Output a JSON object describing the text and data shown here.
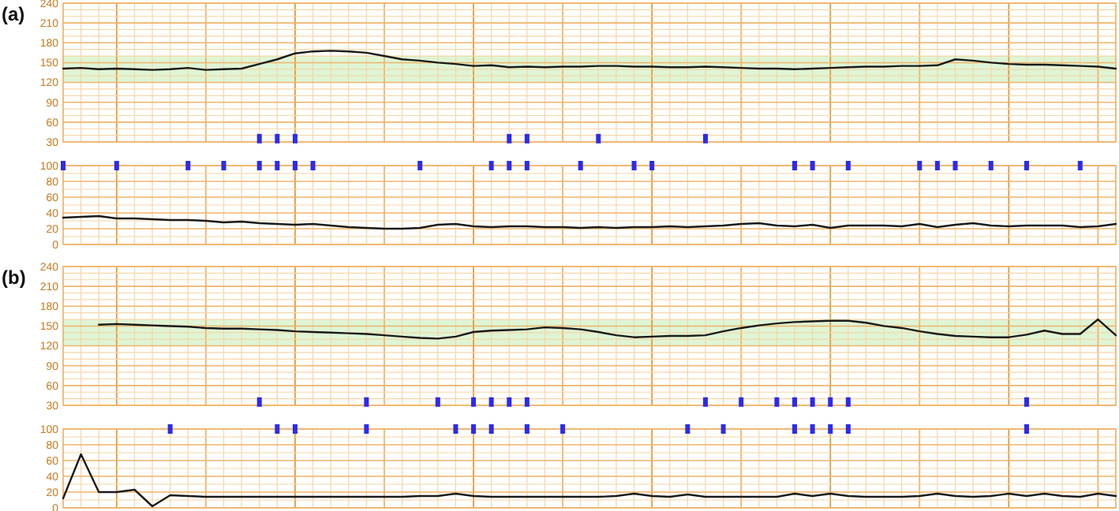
{
  "chart_data": [
    {
      "type": "line",
      "title": "(a)",
      "categories": [
        null,
        null,
        null,
        null,
        null,
        null,
        null,
        null,
        null,
        null,
        null,
        null,
        null,
        null,
        null,
        null,
        null,
        null,
        null,
        null,
        null,
        null,
        null,
        null,
        null,
        null,
        null,
        null,
        null,
        null,
        null,
        null,
        null,
        null,
        null,
        null,
        null,
        null,
        null,
        null,
        null,
        null,
        null,
        null,
        null,
        null,
        null,
        null,
        null,
        null,
        null,
        null,
        null,
        null,
        null,
        null,
        null,
        null,
        null,
        null
      ],
      "ylim": [
        30,
        240
      ],
      "yticks": [
        30,
        60,
        90,
        120,
        150,
        180,
        210,
        240
      ],
      "grid": true,
      "tick_labels": "y",
      "bands": [
        {
          "axis": "y",
          "from": 120,
          "to": 160,
          "color": "#def5d6"
        }
      ],
      "series": [
        {
          "color": "#1a1a1a",
          "values": [
            141,
            142,
            140,
            141,
            140,
            139,
            140,
            142,
            139,
            140,
            141,
            148,
            155,
            164,
            167,
            168,
            167,
            165,
            160,
            155,
            153,
            150,
            148,
            145,
            146,
            143,
            144,
            143,
            144,
            144,
            145,
            145,
            144,
            144,
            143,
            143,
            144,
            143,
            142,
            141,
            141,
            140,
            141,
            142,
            143,
            144,
            144,
            145,
            145,
            146,
            155,
            153,
            150,
            148,
            147,
            147,
            146,
            145,
            144,
            141
          ]
        },
        {
          "type": "scatter",
          "marker": "square",
          "color": "#2b2bf0",
          "values": [
            null,
            null,
            null,
            null,
            null,
            null,
            null,
            null,
            null,
            null,
            null,
            35,
            35,
            35,
            null,
            null,
            null,
            null,
            null,
            null,
            null,
            null,
            null,
            null,
            null,
            35,
            35,
            null,
            null,
            null,
            35,
            null,
            null,
            null,
            null,
            null,
            35,
            null,
            null,
            null,
            null,
            null,
            null,
            null,
            null,
            null,
            null,
            null,
            null,
            null,
            null,
            null,
            null,
            null,
            null,
            null,
            null,
            null,
            null,
            null
          ]
        }
      ]
    },
    {
      "type": "line",
      "categories": [
        null,
        null,
        null,
        null,
        null,
        null,
        null,
        null,
        null,
        null,
        null,
        null,
        null,
        null,
        null,
        null,
        null,
        null,
        null,
        null,
        null,
        null,
        null,
        null,
        null,
        null,
        null,
        null,
        null,
        null,
        null,
        null,
        null,
        null,
        null,
        null,
        null,
        null,
        null,
        null,
        null,
        null,
        null,
        null,
        null,
        null,
        null,
        null,
        null,
        null,
        null,
        null,
        null,
        null,
        null,
        null,
        null,
        null,
        null,
        null
      ],
      "ylim": [
        0,
        100
      ],
      "yticks": [
        0,
        20,
        40,
        60,
        80,
        100
      ],
      "grid": true,
      "tick_labels": "y",
      "series": [
        {
          "color": "#1a1a1a",
          "values": [
            34,
            35,
            36,
            33,
            33,
            32,
            31,
            31,
            30,
            28,
            29,
            27,
            26,
            25,
            26,
            24,
            22,
            21,
            20,
            20,
            21,
            25,
            26,
            23,
            22,
            23,
            23,
            22,
            22,
            21,
            22,
            21,
            22,
            22,
            23,
            22,
            23,
            24,
            26,
            27,
            24,
            23,
            25,
            21,
            24,
            24,
            24,
            23,
            26,
            22,
            25,
            27,
            24,
            23,
            24,
            24,
            24,
            22,
            23,
            26
          ]
        },
        {
          "type": "scatter",
          "marker": "square",
          "color": "#2b2bf0",
          "values": [
            100,
            null,
            null,
            100,
            null,
            null,
            null,
            100,
            null,
            100,
            null,
            100,
            100,
            100,
            100,
            null,
            null,
            null,
            null,
            null,
            100,
            null,
            null,
            null,
            100,
            100,
            100,
            null,
            null,
            100,
            null,
            null,
            100,
            100,
            null,
            null,
            null,
            null,
            null,
            null,
            null,
            100,
            100,
            null,
            100,
            null,
            null,
            null,
            100,
            100,
            100,
            null,
            100,
            null,
            100,
            null,
            null,
            100,
            null,
            null
          ]
        }
      ]
    },
    {
      "type": "line",
      "title": "(b)",
      "categories": [
        null,
        null,
        null,
        null,
        null,
        null,
        null,
        null,
        null,
        null,
        null,
        null,
        null,
        null,
        null,
        null,
        null,
        null,
        null,
        null,
        null,
        null,
        null,
        null,
        null,
        null,
        null,
        null,
        null,
        null,
        null,
        null,
        null,
        null,
        null,
        null,
        null,
        null,
        null,
        null,
        null,
        null,
        null,
        null,
        null,
        null,
        null,
        null,
        null,
        null,
        null,
        null,
        null,
        null,
        null,
        null,
        null,
        null,
        null,
        null
      ],
      "ylim": [
        30,
        240
      ],
      "yticks": [
        30,
        60,
        90,
        120,
        150,
        180,
        210,
        240
      ],
      "grid": true,
      "tick_labels": "y",
      "bands": [
        {
          "axis": "y",
          "from": 120,
          "to": 160,
          "color": "#def5d6"
        }
      ],
      "series": [
        {
          "color": "#1a1a1a",
          "values": [
            null,
            null,
            152,
            153,
            152,
            151,
            150,
            149,
            147,
            146,
            146,
            145,
            144,
            142,
            141,
            140,
            139,
            138,
            136,
            134,
            132,
            131,
            134,
            141,
            143,
            144,
            145,
            148,
            147,
            145,
            141,
            136,
            133,
            134,
            135,
            135,
            136,
            142,
            147,
            151,
            154,
            156,
            157,
            158,
            158,
            155,
            150,
            147,
            142,
            138,
            135,
            134,
            133,
            133,
            137,
            143,
            138,
            138,
            160,
            136
          ]
        },
        {
          "type": "scatter",
          "marker": "square",
          "color": "#2b2bf0",
          "values": [
            null,
            null,
            null,
            null,
            null,
            null,
            null,
            null,
            null,
            null,
            null,
            35,
            null,
            null,
            null,
            null,
            null,
            35,
            null,
            null,
            null,
            35,
            null,
            35,
            35,
            35,
            35,
            null,
            null,
            null,
            null,
            null,
            null,
            null,
            null,
            null,
            35,
            null,
            35,
            null,
            35,
            35,
            35,
            35,
            35,
            null,
            null,
            null,
            null,
            null,
            null,
            null,
            null,
            null,
            35,
            null,
            null,
            null,
            null,
            null
          ]
        }
      ]
    },
    {
      "type": "line",
      "categories": [
        null,
        null,
        null,
        null,
        null,
        null,
        null,
        null,
        null,
        null,
        null,
        null,
        null,
        null,
        null,
        null,
        null,
        null,
        null,
        null,
        null,
        null,
        null,
        null,
        null,
        null,
        null,
        null,
        null,
        null,
        null,
        null,
        null,
        null,
        null,
        null,
        null,
        null,
        null,
        null,
        null,
        null,
        null,
        null,
        null,
        null,
        null,
        null,
        null,
        null,
        null,
        null,
        null,
        null,
        null,
        null,
        null,
        null,
        null,
        null
      ],
      "ylim": [
        0,
        100
      ],
      "yticks": [
        0,
        20,
        40,
        60,
        80,
        100
      ],
      "grid": true,
      "tick_labels": "y",
      "series": [
        {
          "color": "#1a1a1a",
          "values": [
            12,
            68,
            20,
            20,
            23,
            2,
            16,
            15,
            14,
            14,
            14,
            14,
            14,
            14,
            14,
            14,
            14,
            14,
            14,
            14,
            15,
            15,
            18,
            15,
            14,
            14,
            14,
            14,
            14,
            14,
            14,
            15,
            18,
            15,
            14,
            17,
            14,
            14,
            14,
            14,
            14,
            18,
            15,
            18,
            15,
            14,
            14,
            14,
            15,
            18,
            15,
            14,
            15,
            18,
            15,
            18,
            15,
            14,
            18,
            15
          ]
        },
        {
          "type": "scatter",
          "marker": "square",
          "color": "#2b2bf0",
          "values": [
            null,
            null,
            null,
            null,
            null,
            null,
            100,
            null,
            null,
            null,
            null,
            null,
            100,
            100,
            null,
            null,
            null,
            100,
            null,
            null,
            null,
            null,
            100,
            100,
            100,
            null,
            100,
            null,
            100,
            null,
            null,
            null,
            null,
            null,
            null,
            100,
            null,
            100,
            null,
            null,
            null,
            100,
            100,
            100,
            100,
            null,
            null,
            null,
            null,
            null,
            null,
            null,
            null,
            null,
            100,
            null,
            null,
            null,
            null,
            null
          ]
        }
      ]
    }
  ]
}
